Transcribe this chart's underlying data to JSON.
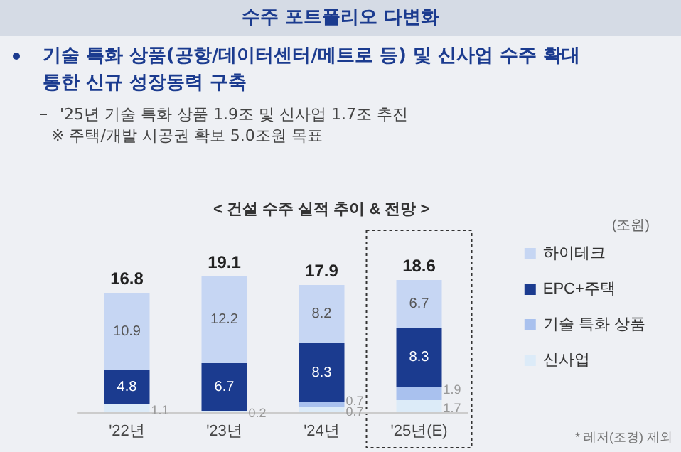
{
  "chart_data": {
    "type": "bar",
    "title": "수주 포트폴리오 다변화",
    "subtitle": "< 건설 수주 실적 추이 & 전망 >",
    "annotations": [
      "기술 특화 상품(공항/데이터센터/메트로 등) 및 신사업 수주 확대 통한 신규 성장동력 구축",
      "'25년 기술 특화 상품 1.9조 및 신사업 1.7조 추진",
      "※ 주택/개발 시공권 확보 5.0조원 목표",
      "(조원)",
      "* 레저(조경) 제외"
    ],
    "categories": [
      "'22년",
      "'23년",
      "'24년",
      "'25년(E)"
    ],
    "stacked": true,
    "data_labels": true,
    "legend": "right",
    "grid": false,
    "totals": [
      "16.8",
      "19.1",
      "17.9",
      "18.6"
    ],
    "series": [
      {
        "name": "신사업",
        "color": "#dcebf8",
        "values": [
          1.1,
          0.2,
          0.7,
          1.7
        ]
      },
      {
        "name": "기술 특화 상품",
        "color": "#a9c1ee",
        "values": [
          null,
          null,
          0.7,
          1.9
        ]
      },
      {
        "name": "EPC+주택",
        "color": "#1b3b8f",
        "values": [
          4.8,
          6.7,
          8.3,
          8.3
        ]
      },
      {
        "name": "하이테크",
        "color": "#c6d6f3",
        "values": [
          10.9,
          12.2,
          8.2,
          6.7
        ]
      }
    ]
  }
}
